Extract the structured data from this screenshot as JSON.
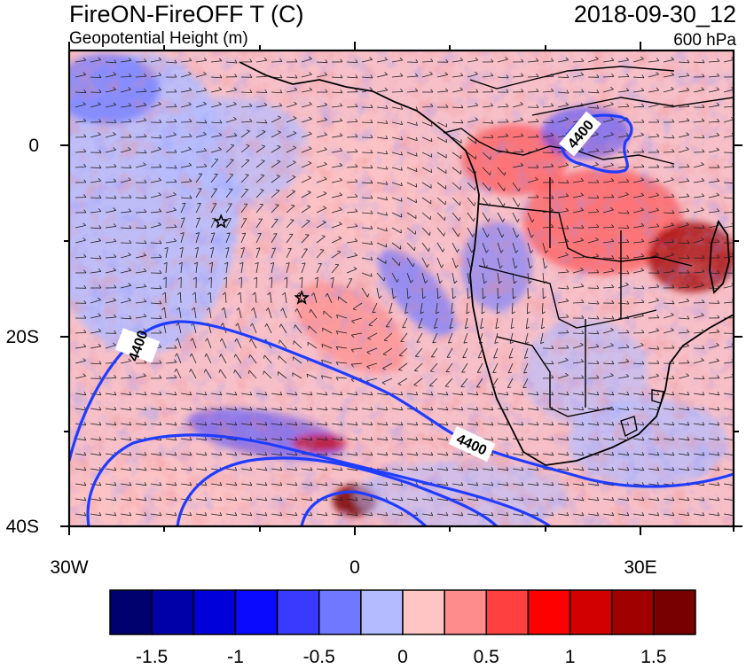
{
  "header": {
    "left_title": "FireON-FireOFF T (C)",
    "left_subtitle": "Geopotential Height (m)",
    "right_title": "2018-09-30_12",
    "right_subtitle": "600 hPa"
  },
  "map": {
    "region": "Southern Africa and South Atlantic",
    "overlay": "wind barbs",
    "lon_ticks": [
      "30W",
      "0",
      "30E"
    ],
    "lat_ticks": [
      "0",
      "20S",
      "40S"
    ],
    "contour": {
      "variable": "Geopotential Height (m)",
      "color": "#1f3cff",
      "labels": [
        "4400",
        "4400",
        "4400"
      ]
    },
    "markers": [
      {
        "symbol": "star",
        "lon": -14,
        "lat": -8
      },
      {
        "symbol": "star",
        "lon": -5.5,
        "lat": -16
      }
    ]
  },
  "colorbar": {
    "colors": [
      "#00006e",
      "#0000a8",
      "#0000d8",
      "#0a0aff",
      "#3a3aff",
      "#6f78ff",
      "#b4bcff",
      "#ffc4c4",
      "#ff8c8c",
      "#ff4040",
      "#ff0000",
      "#d20000",
      "#a00000",
      "#780000"
    ],
    "tick_labels": [
      "-1.5",
      "-1",
      "-0.5",
      "0",
      "0.5",
      "1",
      "1.5"
    ]
  }
}
